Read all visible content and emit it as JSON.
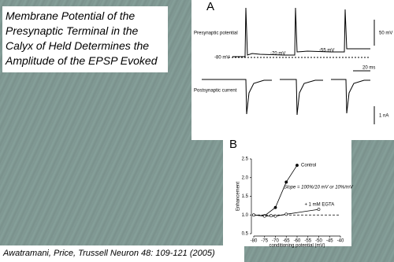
{
  "title_box": {
    "text": "Membrane Potential of the Presynaptic Terminal in the Calyx of Held Determines the Amplitude of the EPSP Evoked"
  },
  "panel_a": {
    "label": "A",
    "presynaptic_label": "Presynaptic potential",
    "voltage_scale": "50 mV",
    "potential_1": "-70 mV",
    "potential_2": "-55 mV",
    "baseline_potential": "-80 mV",
    "time_scale": "20 ms",
    "postsynaptic_label": "Postsynaptic current",
    "current_scale": "1 nA"
  },
  "panel_b": {
    "label": "B"
  },
  "chart_data": {
    "type": "line",
    "xlabel": "conditioning potential (mV)",
    "ylabel": "Enhancement",
    "annotation": "Slope = 100%/10 mV or 10%/mV",
    "xlim": [
      -80,
      -40
    ],
    "xticks": [
      -80,
      -75,
      -70,
      -65,
      -60,
      -55,
      -50,
      -45,
      -40
    ],
    "ylim": [
      0.5,
      2.5
    ],
    "yticks": [
      0.5,
      {
        "value": 1,
        "label": "1.0"
      },
      1.5,
      {
        "value": 2,
        "label": "2.0"
      },
      2.5
    ],
    "reference_line": 1,
    "series": [
      {
        "name": "Control",
        "color": "#000000",
        "marker_fill": "#000000",
        "x": [
          -80,
          -75,
          -70,
          -65,
          -60
        ],
        "values": [
          1.0,
          0.98,
          1.2,
          1.88,
          2.33
        ]
      },
      {
        "name": "+ 1 mM EGTA",
        "color": "#000000",
        "marker_fill": "#ffffff",
        "x": [
          -80,
          -75,
          -72,
          -70,
          -65,
          -50
        ],
        "values": [
          1.0,
          0.97,
          0.98,
          0.97,
          1.02,
          1.15
        ]
      }
    ]
  },
  "citation": "Awatramani, Price, Trussell  Neuron 48: 109-121 (2005)"
}
